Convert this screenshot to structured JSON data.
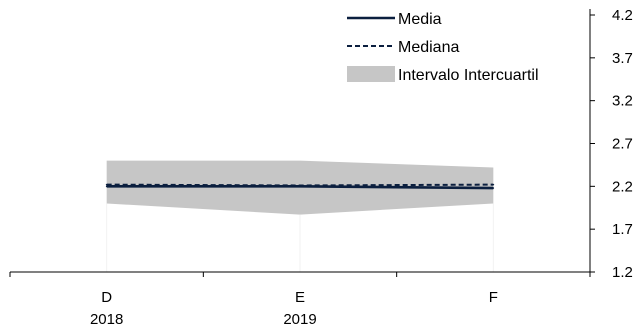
{
  "chart_data": {
    "type": "line",
    "title": "",
    "xlabel": "",
    "ylabel": "",
    "categories": [
      "D",
      "E",
      "F"
    ],
    "category_years": [
      "2018",
      "2019",
      ""
    ],
    "ylim": [
      1.2,
      4.2
    ],
    "yticks": [
      "4.2",
      "3.7",
      "3.2",
      "2.7",
      "2.2",
      "1.7",
      "1.2"
    ],
    "grid": false,
    "y_axis_side": "right",
    "legend_position": "top-right",
    "series": [
      {
        "name": "Media",
        "style": "solid",
        "color": "#0b1f3f",
        "values": [
          2.2,
          2.2,
          2.18
        ]
      },
      {
        "name": "Mediana",
        "style": "dashed",
        "color": "#0b1f3f",
        "values": [
          2.22,
          2.21,
          2.22
        ]
      },
      {
        "name": "Intervalo Intercuartil",
        "style": "band",
        "color": "#c6c6c6",
        "lower": [
          2.0,
          1.87,
          2.0
        ],
        "upper": [
          2.5,
          2.5,
          2.42
        ]
      }
    ]
  }
}
